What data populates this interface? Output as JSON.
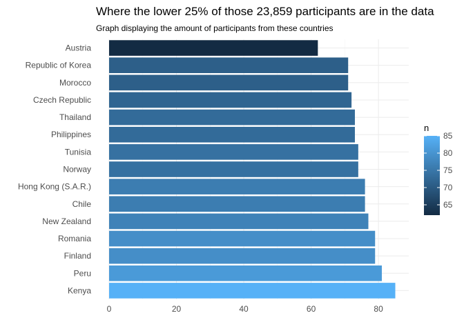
{
  "chart_data": {
    "type": "bar",
    "orientation": "horizontal",
    "title": "Where the lower 25% of those 23,859 participants are in the data",
    "subtitle": "Graph displaying the amount of participants from these countries",
    "xlabel": "",
    "ylabel": "",
    "categories": [
      "Austria",
      "Republic of Korea",
      "Morocco",
      "Czech Republic",
      "Thailand",
      "Philippines",
      "Tunisia",
      "Norway",
      "Hong Kong (S.A.R.)",
      "Chile",
      "New Zealand",
      "Romania",
      "Finland",
      "Peru",
      "Kenya"
    ],
    "values": [
      62,
      71,
      71,
      72,
      73,
      73,
      74,
      74,
      76,
      76,
      77,
      79,
      79,
      81,
      85
    ],
    "xlim": [
      0,
      89
    ],
    "xticks": [
      0,
      20,
      40,
      60,
      80
    ],
    "grid": true,
    "legend": {
      "title": "n",
      "placement": "right",
      "ticks": [
        65,
        70,
        75,
        80,
        85
      ],
      "range": [
        62,
        85
      ],
      "low_color": "#132b43",
      "high_color": "#56b1f7"
    }
  }
}
